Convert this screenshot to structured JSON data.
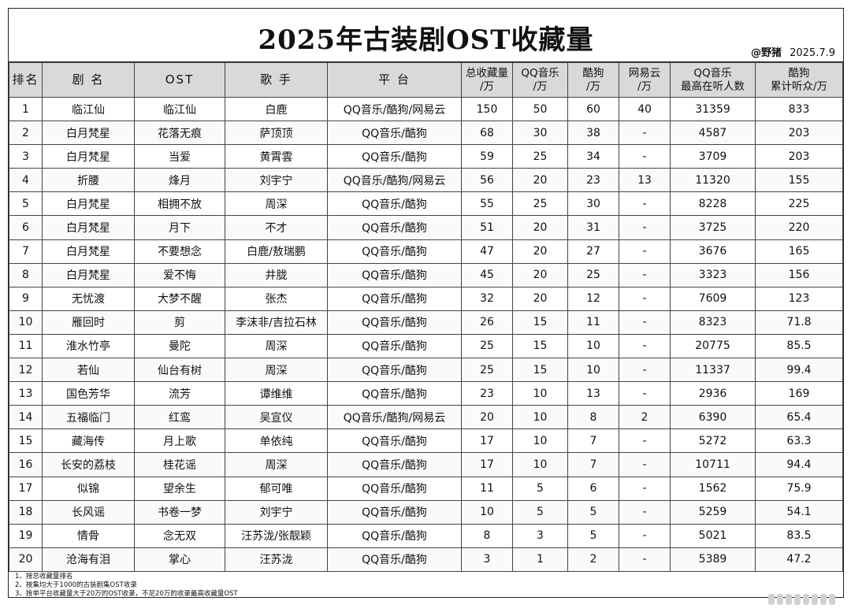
{
  "title": "2025年古装剧OST收藏量",
  "credit": {
    "handle": "@野猪",
    "date": "2025.7.9"
  },
  "headers": {
    "rank": "排名",
    "drama": "剧 名",
    "ost": "OST",
    "singer": "歌 手",
    "platform": "平 台",
    "total_l1": "总收藏量",
    "total_l2": "/万",
    "qq_l1": "QQ音乐",
    "qq_l2": "/万",
    "kugou_l1": "酷狗",
    "kugou_l2": "/万",
    "netease_l1": "网易云",
    "netease_l2": "/万",
    "qqpeak_l1": "QQ音乐",
    "qqpeak_l2": "最高在听人数",
    "kugoucum_l1": "酷狗",
    "kugoucum_l2": "累计听众/万"
  },
  "rows": [
    {
      "rank": "1",
      "drama": "临江仙",
      "ost": "临江仙",
      "singer": "白鹿",
      "platform": "QQ音乐/酷狗/网易云",
      "total": "150",
      "qq": "50",
      "kugou": "60",
      "netease": "40",
      "qqpeak": "31359",
      "kugoucum": "833"
    },
    {
      "rank": "2",
      "drama": "白月梵星",
      "ost": "花落无痕",
      "singer": "萨顶顶",
      "platform": "QQ音乐/酷狗",
      "total": "68",
      "qq": "30",
      "kugou": "38",
      "netease": "-",
      "qqpeak": "4587",
      "kugoucum": "203"
    },
    {
      "rank": "3",
      "drama": "白月梵星",
      "ost": "当爱",
      "singer": "黄霄雲",
      "platform": "QQ音乐/酷狗",
      "total": "59",
      "qq": "25",
      "kugou": "34",
      "netease": "-",
      "qqpeak": "3709",
      "kugoucum": "203"
    },
    {
      "rank": "4",
      "drama": "折腰",
      "ost": "烽月",
      "singer": "刘宇宁",
      "platform": "QQ音乐/酷狗/网易云",
      "total": "56",
      "qq": "20",
      "kugou": "23",
      "netease": "13",
      "qqpeak": "11320",
      "kugoucum": "155"
    },
    {
      "rank": "5",
      "drama": "白月梵星",
      "ost": "相拥不放",
      "singer": "周深",
      "platform": "QQ音乐/酷狗",
      "total": "55",
      "qq": "25",
      "kugou": "30",
      "netease": "-",
      "qqpeak": "8228",
      "kugoucum": "225"
    },
    {
      "rank": "6",
      "drama": "白月梵星",
      "ost": "月下",
      "singer": "不才",
      "platform": "QQ音乐/酷狗",
      "total": "51",
      "qq": "20",
      "kugou": "31",
      "netease": "-",
      "qqpeak": "3725",
      "kugoucum": "220"
    },
    {
      "rank": "7",
      "drama": "白月梵星",
      "ost": "不要想念",
      "singer": "白鹿/敖瑞鹏",
      "platform": "QQ音乐/酷狗",
      "total": "47",
      "qq": "20",
      "kugou": "27",
      "netease": "-",
      "qqpeak": "3676",
      "kugoucum": "165"
    },
    {
      "rank": "8",
      "drama": "白月梵星",
      "ost": "爱不悔",
      "singer": "井胧",
      "platform": "QQ音乐/酷狗",
      "total": "45",
      "qq": "20",
      "kugou": "25",
      "netease": "-",
      "qqpeak": "3323",
      "kugoucum": "156"
    },
    {
      "rank": "9",
      "drama": "无忧渡",
      "ost": "大梦不醒",
      "singer": "张杰",
      "platform": "QQ音乐/酷狗",
      "total": "32",
      "qq": "20",
      "kugou": "12",
      "netease": "-",
      "qqpeak": "7609",
      "kugoucum": "123"
    },
    {
      "rank": "10",
      "drama": "雁回时",
      "ost": "剪",
      "singer": "李沫非/吉拉石林",
      "platform": "QQ音乐/酷狗",
      "total": "26",
      "qq": "15",
      "kugou": "11",
      "netease": "-",
      "qqpeak": "8323",
      "kugoucum": "71.8"
    },
    {
      "rank": "11",
      "drama": "淮水竹亭",
      "ost": "曼陀",
      "singer": "周深",
      "platform": "QQ音乐/酷狗",
      "total": "25",
      "qq": "15",
      "kugou": "10",
      "netease": "-",
      "qqpeak": "20775",
      "kugoucum": "85.5"
    },
    {
      "rank": "12",
      "drama": "若仙",
      "ost": "仙台有树",
      "singer": "周深",
      "platform": "QQ音乐/酷狗",
      "total": "25",
      "qq": "15",
      "kugou": "10",
      "netease": "-",
      "qqpeak": "11337",
      "kugoucum": "99.4"
    },
    {
      "rank": "13",
      "drama": "国色芳华",
      "ost": "流芳",
      "singer": "谭维维",
      "platform": "QQ音乐/酷狗",
      "total": "23",
      "qq": "10",
      "kugou": "13",
      "netease": "-",
      "qqpeak": "2936",
      "kugoucum": "169"
    },
    {
      "rank": "14",
      "drama": "五福临门",
      "ost": "红鸾",
      "singer": "吴宣仪",
      "platform": "QQ音乐/酷狗/网易云",
      "total": "20",
      "qq": "10",
      "kugou": "8",
      "netease": "2",
      "qqpeak": "6390",
      "kugoucum": "65.4"
    },
    {
      "rank": "15",
      "drama": "藏海传",
      "ost": "月上歌",
      "singer": "单依纯",
      "platform": "QQ音乐/酷狗",
      "total": "17",
      "qq": "10",
      "kugou": "7",
      "netease": "-",
      "qqpeak": "5272",
      "kugoucum": "63.3"
    },
    {
      "rank": "16",
      "drama": "长安的荔枝",
      "ost": "桂花谣",
      "singer": "周深",
      "platform": "QQ音乐/酷狗",
      "total": "17",
      "qq": "10",
      "kugou": "7",
      "netease": "-",
      "qqpeak": "10711",
      "kugoucum": "94.4"
    },
    {
      "rank": "17",
      "drama": "似锦",
      "ost": "望余生",
      "singer": "郁可唯",
      "platform": "QQ音乐/酷狗",
      "total": "11",
      "qq": "5",
      "kugou": "6",
      "netease": "-",
      "qqpeak": "1562",
      "kugoucum": "75.9"
    },
    {
      "rank": "18",
      "drama": "长风谣",
      "ost": "书卷一梦",
      "singer": "刘宇宁",
      "platform": "QQ音乐/酷狗",
      "total": "10",
      "qq": "5",
      "kugou": "5",
      "netease": "-",
      "qqpeak": "5259",
      "kugoucum": "54.1"
    },
    {
      "rank": "19",
      "drama": "情骨",
      "ost": "念无双",
      "singer": "汪苏泷/张靓颖",
      "platform": "QQ音乐/酷狗",
      "total": "8",
      "qq": "3",
      "kugou": "5",
      "netease": "-",
      "qqpeak": "5021",
      "kugoucum": "83.5"
    },
    {
      "rank": "20",
      "drama": "沧海有泪",
      "ost": "掌心",
      "singer": "汪苏泷",
      "platform": "QQ音乐/酷狗",
      "total": "3",
      "qq": "1",
      "kugou": "2",
      "netease": "-",
      "qqpeak": "5389",
      "kugoucum": "47.2"
    }
  ],
  "notes": [
    "1、按总收藏量排名",
    "2、按集均大于1000的古装剧集OST收录",
    "3、按单平台收藏量大于20万的OST收录，不足20万的收录最高收藏量OST"
  ]
}
